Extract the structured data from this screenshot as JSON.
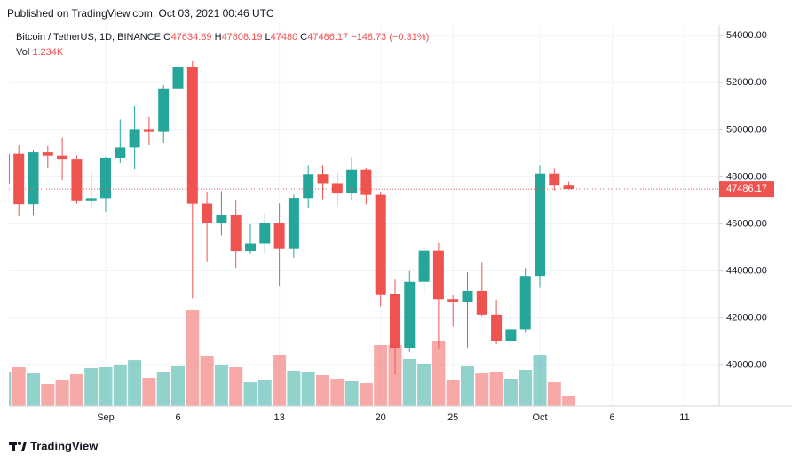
{
  "header": {
    "published": "Published on TradingView.com, Oct 03, 2021 00:46 UTC",
    "symbol": "Bitcoin / TetherUS, 1D, BINANCE",
    "ohlc_keys": [
      "O",
      "H",
      "L",
      "C"
    ],
    "change": "−148.73 (−0.31%)",
    "volume_key": "Vol",
    "volume_label": "1.234K"
  },
  "footer": {
    "brand": "TradingView"
  },
  "chart_data": {
    "type": "candlestick",
    "categories": [
      null,
      null,
      null,
      null,
      null,
      null,
      null,
      "Sep",
      null,
      null,
      null,
      null,
      "6",
      null,
      null,
      null,
      null,
      null,
      null,
      "13",
      null,
      null,
      null,
      null,
      null,
      null,
      "20",
      null,
      null,
      null,
      null,
      "25",
      null,
      null,
      null,
      null,
      null,
      "Oct",
      null,
      null,
      null,
      null,
      "6",
      null,
      null,
      null,
      null,
      "11",
      null,
      null
    ],
    "open": [
      47707,
      48972,
      46843,
      49070,
      48895,
      48767,
      46970,
      47100,
      48810,
      49246,
      49999,
      49915,
      51756,
      52666,
      46868,
      46048,
      46396,
      44850,
      45174,
      46026,
      44940,
      47103,
      48122,
      47737,
      47299,
      48292,
      47242,
      43016,
      40734,
      43546,
      44866,
      42810,
      42670,
      43160,
      42147,
      41025,
      41522,
      43790,
      48141,
      47634.89,
      null,
      null,
      null,
      null,
      null,
      null,
      null,
      null,
      null,
      null
    ],
    "high": [
      49237,
      49369,
      49149,
      49309,
      49658,
      48908,
      48246,
      48849,
      50450,
      51000,
      50558,
      51900,
      52780,
      52920,
      47381,
      47400,
      47033,
      45990,
      46460,
      46880,
      47250,
      48500,
      48500,
      48177,
      48843,
      48372,
      47358,
      43639,
      44000,
      44978,
      45200,
      42966,
      43950,
      44350,
      42787,
      42590,
      44132,
      48495,
      48336,
      47808.19,
      null,
      null,
      null,
      null,
      null,
      null,
      null,
      null,
      null,
      null
    ],
    "low": [
      47062,
      46322,
      46350,
      48370,
      47863,
      46853,
      46700,
      46514,
      48584,
      48316,
      49370,
      49450,
      50969,
      42843,
      44412,
      45513,
      44132,
      44750,
      44743,
      43370,
      44555,
      46682,
      47050,
      46750,
      47033,
      46830,
      42500,
      39600,
      40565,
      43069,
      40675,
      41646,
      40750,
      42098,
      40888,
      40753,
      41410,
      43283,
      47430,
      47480,
      null,
      null,
      null,
      null,
      null,
      null,
      null,
      null,
      null,
      null
    ],
    "close": [
      48972,
      46843,
      49070,
      48895,
      48767,
      46970,
      47100,
      48810,
      49246,
      49999,
      49915,
      51756,
      52663,
      46863,
      46049,
      46395,
      44850,
      45174,
      46026,
      44940,
      47111,
      48121,
      47737,
      47299,
      48292,
      47241,
      42980,
      40734,
      43543,
      44865,
      42810,
      42670,
      43160,
      42147,
      41026,
      41522,
      43790,
      48141,
      47634,
      47486.17,
      null,
      null,
      null,
      null,
      null,
      null,
      null,
      null,
      null,
      null
    ],
    "volume": [
      4370,
      4930,
      4140,
      2800,
      3250,
      4030,
      4820,
      4930,
      5150,
      5820,
      3580,
      4260,
      5040,
      12100,
      6380,
      5150,
      4930,
      3020,
      3250,
      6500,
      4480,
      4260,
      3920,
      3470,
      3140,
      2910,
      7730,
      7730,
      5940,
      5380,
      8290,
      3360,
      5040,
      4140,
      4370,
      3470,
      4590,
      6500,
      3020,
      1234,
      null,
      null,
      null,
      null,
      null,
      null,
      null,
      null,
      null,
      null
    ],
    "up_color": "#26a69a",
    "down_color": "#ef5350",
    "ylim": [
      38260,
      54460
    ],
    "yticks": [
      {
        "value": 40000,
        "label": "40000.00"
      },
      {
        "value": 42000,
        "label": "42000.00"
      },
      {
        "value": 44000,
        "label": "44000.00"
      },
      {
        "value": 46000,
        "label": "46000.00"
      },
      {
        "value": 48000,
        "label": "48000.00"
      },
      {
        "value": 50000,
        "label": "50000.00"
      },
      {
        "value": 52000,
        "label": "52000.00"
      },
      {
        "value": 54000,
        "label": "54000.00"
      }
    ],
    "volume_lim": [
      0,
      13440
    ],
    "grid": true
  }
}
